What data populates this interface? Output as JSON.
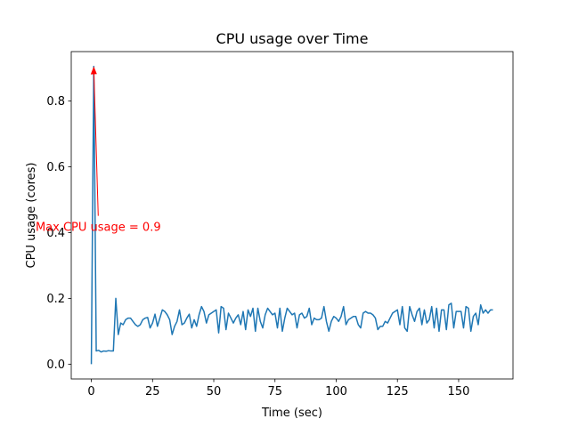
{
  "chart_data": {
    "type": "line",
    "title": "CPU usage over Time",
    "x_label": "Time (sec)",
    "y_label": "CPU usage (cores)",
    "x": [
      0,
      1,
      2,
      3,
      4,
      5,
      6,
      7,
      8,
      9,
      10,
      11,
      12,
      13,
      14,
      15,
      16,
      17,
      18,
      19,
      20,
      21,
      22,
      23,
      24,
      25,
      26,
      27,
      28,
      29,
      30,
      31,
      32,
      33,
      34,
      35,
      36,
      37,
      38,
      39,
      40,
      41,
      42,
      43,
      44,
      45,
      46,
      47,
      48,
      49,
      50,
      51,
      52,
      53,
      54,
      55,
      56,
      57,
      58,
      59,
      60,
      61,
      62,
      63,
      64,
      65,
      66,
      67,
      68,
      69,
      70,
      71,
      72,
      73,
      74,
      75,
      76,
      77,
      78,
      79,
      80,
      81,
      82,
      83,
      84,
      85,
      86,
      87,
      88,
      89,
      90,
      91,
      92,
      93,
      94,
      95,
      96,
      97,
      98,
      99,
      100,
      101,
      102,
      103,
      104,
      105,
      106,
      107,
      108,
      109,
      110,
      111,
      112,
      113,
      114,
      115,
      116,
      117,
      118,
      119,
      120,
      121,
      122,
      123,
      124,
      125,
      126,
      127,
      128,
      129,
      130,
      131,
      132,
      133,
      134,
      135,
      136,
      137,
      138,
      139,
      140,
      141,
      142,
      143,
      144,
      145,
      146,
      147,
      148,
      149,
      150,
      151,
      152,
      153,
      154,
      155,
      156,
      157,
      158,
      159,
      160,
      161,
      162,
      163,
      164
    ],
    "series": [
      {
        "color": "#1f77b4",
        "values": [
          0,
          0.905,
          0.04,
          0.042,
          0.037,
          0.04,
          0.039,
          0.041,
          0.04,
          0.04,
          0.2,
          0.09,
          0.125,
          0.12,
          0.135,
          0.14,
          0.14,
          0.13,
          0.12,
          0.115,
          0.12,
          0.135,
          0.14,
          0.142,
          0.11,
          0.125,
          0.152,
          0.115,
          0.14,
          0.165,
          0.16,
          0.15,
          0.135,
          0.09,
          0.115,
          0.13,
          0.165,
          0.12,
          0.125,
          0.14,
          0.152,
          0.11,
          0.135,
          0.115,
          0.15,
          0.175,
          0.16,
          0.125,
          0.15,
          0.155,
          0.16,
          0.165,
          0.095,
          0.175,
          0.17,
          0.105,
          0.155,
          0.14,
          0.125,
          0.14,
          0.15,
          0.12,
          0.16,
          0.105,
          0.165,
          0.145,
          0.17,
          0.1,
          0.17,
          0.13,
          0.11,
          0.15,
          0.17,
          0.16,
          0.15,
          0.155,
          0.11,
          0.17,
          0.1,
          0.14,
          0.17,
          0.16,
          0.15,
          0.155,
          0.11,
          0.15,
          0.155,
          0.14,
          0.145,
          0.17,
          0.12,
          0.14,
          0.135,
          0.135,
          0.14,
          0.175,
          0.13,
          0.1,
          0.13,
          0.145,
          0.14,
          0.13,
          0.145,
          0.175,
          0.12,
          0.135,
          0.14,
          0.145,
          0.145,
          0.12,
          0.11,
          0.155,
          0.16,
          0.155,
          0.155,
          0.15,
          0.14,
          0.105,
          0.115,
          0.115,
          0.13,
          0.125,
          0.14,
          0.155,
          0.16,
          0.165,
          0.12,
          0.175,
          0.11,
          0.1,
          0.175,
          0.15,
          0.13,
          0.16,
          0.17,
          0.12,
          0.165,
          0.125,
          0.135,
          0.175,
          0.11,
          0.17,
          0.1,
          0.165,
          0.165,
          0.105,
          0.18,
          0.185,
          0.11,
          0.16,
          0.16,
          0.16,
          0.11,
          0.175,
          0.17,
          0.1,
          0.145,
          0.155,
          0.12,
          0.18,
          0.155,
          0.165,
          0.155,
          0.165,
          0.165
        ]
      }
    ],
    "xlim": [
      -8.2,
      172.2
    ],
    "xticks": [
      0,
      25,
      50,
      75,
      100,
      125,
      150
    ],
    "ylim": [
      -0.045,
      0.95
    ],
    "yticks": [
      {
        "value": 0,
        "label": "0.0"
      },
      0.2,
      0.4,
      0.6,
      0.8
    ],
    "annotations": [
      {
        "text": "Max CPU usage = 0.9",
        "xy": [
          1,
          0.905
        ],
        "color": "red"
      }
    ]
  }
}
